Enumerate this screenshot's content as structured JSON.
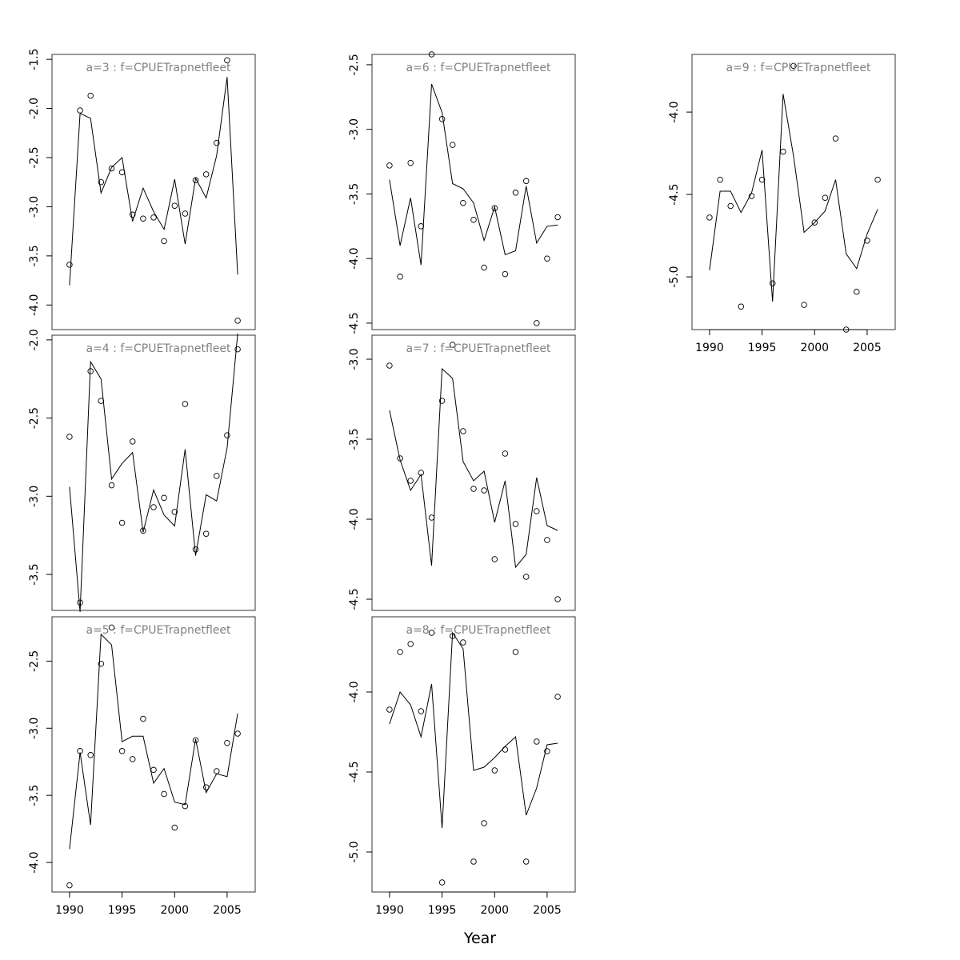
{
  "chart_data": {
    "type": "line",
    "xlabel": "Year",
    "x_ticks": [
      1990,
      1995,
      2000,
      2005
    ],
    "colors": {
      "title": "#808080",
      "axis": "#000000",
      "frame": "#333333"
    },
    "panels": [
      {
        "title": "a=3  :  f=CPUETrapnetfleet",
        "ylim": [
          -4.25,
          -1.45
        ],
        "yticks": [
          -4.0,
          -3.5,
          -3.0,
          -2.5,
          -2.0,
          -1.5
        ],
        "ytick_labels": [
          "-4.0",
          "-3.5",
          "-3.0",
          "-2.5",
          "-2.0",
          "-1.5"
        ],
        "x": [
          1990,
          1991,
          1992,
          1993,
          1994,
          1995,
          1996,
          1997,
          1998,
          1999,
          2000,
          2001,
          2002,
          2003,
          2004,
          2005,
          2006
        ],
        "observed": [
          -3.59,
          -2.02,
          -1.87,
          -2.75,
          -2.61,
          -2.65,
          -3.08,
          -3.12,
          -3.11,
          -3.35,
          -2.99,
          -3.07,
          -2.73,
          -2.67,
          -2.35,
          -1.51,
          -4.16
        ],
        "fitted": [
          -3.8,
          -2.05,
          -2.1,
          -2.86,
          -2.6,
          -2.5,
          -3.15,
          -2.81,
          -3.05,
          -3.23,
          -2.72,
          -3.38,
          -2.71,
          -2.91,
          -2.48,
          -1.68,
          -3.69
        ]
      },
      {
        "title": "a=4  :  f=CPUETrapnetfleet",
        "ylim": [
          -3.73,
          -1.97
        ],
        "yticks": [
          -3.5,
          -3.0,
          -2.5,
          -2.0
        ],
        "ytick_labels": [
          "-3.5",
          "-3.0",
          "-2.5",
          "-2.0"
        ],
        "x": [
          1990,
          1991,
          1992,
          1993,
          1994,
          1995,
          1996,
          1997,
          1998,
          1999,
          2000,
          2001,
          2002,
          2003,
          2004,
          2005,
          2006
        ],
        "observed": [
          -2.62,
          -3.68,
          -2.2,
          -2.39,
          -2.93,
          -3.17,
          -2.65,
          -3.22,
          -3.07,
          -3.01,
          -3.1,
          -2.41,
          -3.34,
          -3.24,
          -2.87,
          -2.61,
          -2.06
        ],
        "fitted": [
          -2.94,
          -3.74,
          -2.14,
          -2.25,
          -2.89,
          -2.79,
          -2.72,
          -3.23,
          -2.96,
          -3.12,
          -3.19,
          -2.7,
          -3.38,
          -2.99,
          -3.03,
          -2.69,
          -1.96
        ]
      },
      {
        "title": "a=5  :  f=CPUETrapnetfleet",
        "ylim": [
          -4.22,
          -2.17
        ],
        "yticks": [
          -4.0,
          -3.5,
          -3.0,
          -2.5
        ],
        "ytick_labels": [
          "-4.0",
          "-3.5",
          "-3.0",
          "-2.5"
        ],
        "x": [
          1990,
          1991,
          1992,
          1993,
          1994,
          1995,
          1996,
          1997,
          1998,
          1999,
          2000,
          2001,
          2002,
          2003,
          2004,
          2005,
          2006
        ],
        "observed": [
          -4.17,
          -3.17,
          -3.2,
          -2.52,
          -2.25,
          -3.17,
          -3.23,
          -2.93,
          -3.31,
          -3.49,
          -3.74,
          -3.58,
          -3.09,
          -3.44,
          -3.32,
          -3.11,
          -3.04
        ],
        "fitted": [
          -3.9,
          -3.18,
          -3.72,
          -2.3,
          -2.38,
          -3.1,
          -3.06,
          -3.06,
          -3.41,
          -3.3,
          -3.55,
          -3.57,
          -3.08,
          -3.48,
          -3.34,
          -3.36,
          -2.89
        ]
      },
      {
        "title": "a=6  :  f=CPUETrapnetfleet",
        "ylim": [
          -4.55,
          -2.42
        ],
        "yticks": [
          -4.5,
          -4.0,
          -3.5,
          -3.0,
          -2.5
        ],
        "ytick_labels": [
          "-4.5",
          "-4.0",
          "-3.5",
          "-3.0",
          "-2.5"
        ],
        "x": [
          1990,
          1991,
          1992,
          1993,
          1994,
          1995,
          1996,
          1997,
          1998,
          1999,
          2000,
          2001,
          2002,
          2003,
          2004,
          2005,
          2006
        ],
        "observed": [
          -3.28,
          -4.14,
          -3.26,
          -3.75,
          -2.42,
          -2.92,
          -3.12,
          -3.57,
          -3.7,
          -4.07,
          -3.61,
          -4.12,
          -3.49,
          -3.4,
          -4.5,
          -4.0,
          -3.68
        ],
        "fitted": [
          -3.39,
          -3.9,
          -3.53,
          -4.05,
          -2.65,
          -2.87,
          -3.42,
          -3.46,
          -3.57,
          -3.86,
          -3.6,
          -3.97,
          -3.94,
          -3.44,
          -3.88,
          -3.75,
          -3.74
        ]
      },
      {
        "title": "a=7  :  f=CPUETrapnetfleet",
        "ylim": [
          -4.57,
          -2.85
        ],
        "yticks": [
          -4.5,
          -4.0,
          -3.5,
          -3.0
        ],
        "ytick_labels": [
          "-4.5",
          "-4.0",
          "-3.5",
          "-3.0"
        ],
        "x": [
          1990,
          1991,
          1992,
          1993,
          1994,
          1995,
          1996,
          1997,
          1998,
          1999,
          2000,
          2001,
          2002,
          2003,
          2004,
          2005,
          2006
        ],
        "observed": [
          -3.04,
          -3.62,
          -3.76,
          -3.71,
          -3.99,
          -3.26,
          -2.91,
          -3.45,
          -3.81,
          -3.82,
          -4.25,
          -3.59,
          -4.03,
          -4.36,
          -3.95,
          -4.13,
          -4.5
        ],
        "fitted": [
          -3.32,
          -3.63,
          -3.82,
          -3.72,
          -4.29,
          -3.06,
          -3.12,
          -3.64,
          -3.76,
          -3.7,
          -4.02,
          -3.76,
          -4.3,
          -4.22,
          -3.74,
          -4.04,
          -4.07
        ]
      },
      {
        "title": "a=8  :  f=CPUETrapnetfleet",
        "ylim": [
          -5.25,
          -3.53
        ],
        "yticks": [
          -5.0,
          -4.5,
          -4.0
        ],
        "ytick_labels": [
          "-5.0",
          "-4.5",
          "-4.0"
        ],
        "x": [
          1990,
          1991,
          1992,
          1993,
          1994,
          1995,
          1996,
          1997,
          1998,
          1999,
          2000,
          2001,
          2002,
          2003,
          2004,
          2005,
          2006
        ],
        "observed": [
          -4.11,
          -3.75,
          -3.7,
          -4.12,
          -3.63,
          -5.19,
          -3.65,
          -3.69,
          -5.06,
          -4.82,
          -4.49,
          -4.36,
          -3.75,
          -5.06,
          -4.31,
          -4.37,
          -4.03
        ],
        "fitted": [
          -4.2,
          -4.0,
          -4.08,
          -4.28,
          -3.95,
          -4.85,
          -3.63,
          -3.73,
          -4.49,
          -4.47,
          -4.41,
          -4.34,
          -4.28,
          -4.77,
          -4.6,
          -4.33,
          -4.32
        ]
      },
      {
        "title": "a=9  :  f=CPUETrapnetfleet",
        "ylim": [
          -5.32,
          -3.65
        ],
        "yticks": [
          -5.0,
          -4.5,
          -4.0
        ],
        "ytick_labels": [
          "-5.0",
          "-4.5",
          "-4.0"
        ],
        "x": [
          1990,
          1991,
          1992,
          1993,
          1994,
          1995,
          1996,
          1997,
          1998,
          1999,
          2000,
          2001,
          2002,
          2003,
          2004,
          2005,
          2006
        ],
        "observed": [
          -4.64,
          -4.41,
          -4.57,
          -5.18,
          -4.51,
          -4.41,
          -5.04,
          -4.24,
          -3.72,
          -5.17,
          -4.67,
          -4.52,
          -4.16,
          -5.32,
          -5.09,
          -4.78,
          -4.41
        ],
        "fitted": [
          -4.96,
          -4.48,
          -4.48,
          -4.61,
          -4.49,
          -4.23,
          -5.15,
          -3.89,
          -4.27,
          -4.73,
          -4.67,
          -4.6,
          -4.41,
          -4.86,
          -4.95,
          -4.74,
          -4.59
        ]
      }
    ]
  }
}
